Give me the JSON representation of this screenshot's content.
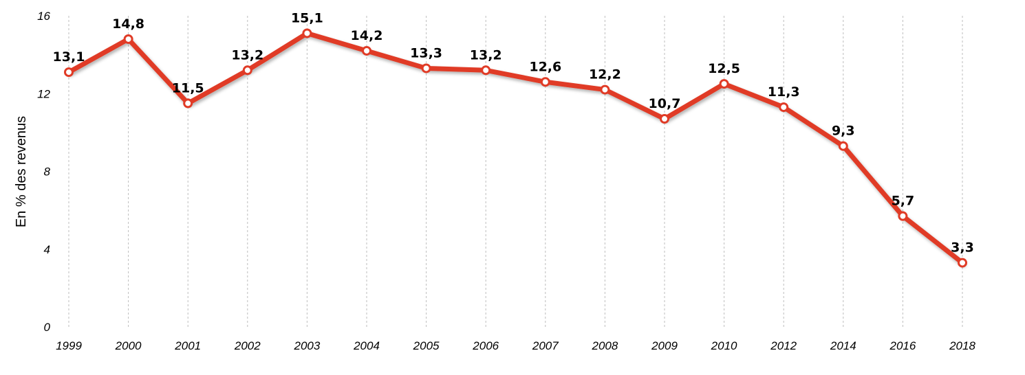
{
  "chart_data": {
    "type": "line",
    "ylabel": "En % des revenus",
    "xlabel": "",
    "title": "",
    "ylim": [
      0,
      16
    ],
    "yticks": [
      0,
      4,
      8,
      12,
      16
    ],
    "categories": [
      "1999",
      "2000",
      "2001",
      "2002",
      "2003",
      "2004",
      "2005",
      "2006",
      "2007",
      "2008",
      "2009",
      "2010",
      "2012",
      "2014",
      "2016",
      "2018"
    ],
    "series": [
      {
        "values": [
          13.1,
          14.8,
          11.5,
          13.2,
          15.1,
          14.2,
          13.3,
          13.2,
          12.6,
          12.2,
          10.7,
          12.5,
          11.3,
          9.3,
          5.7,
          3.3
        ],
        "labels": [
          "13,1",
          "14,8",
          "11,5",
          "13,2",
          "15,1",
          "14,2",
          "13,3",
          "13,2",
          "12,6",
          "12,2",
          "10,7",
          "12,5",
          "11,3",
          "9,3",
          "5,7",
          "3,3"
        ]
      }
    ],
    "grid": "vertical dashed",
    "legend": "none",
    "colors": {
      "line": "#e03b26",
      "marker_fill": "#ffffff",
      "grid": "#bdbdbd"
    }
  }
}
